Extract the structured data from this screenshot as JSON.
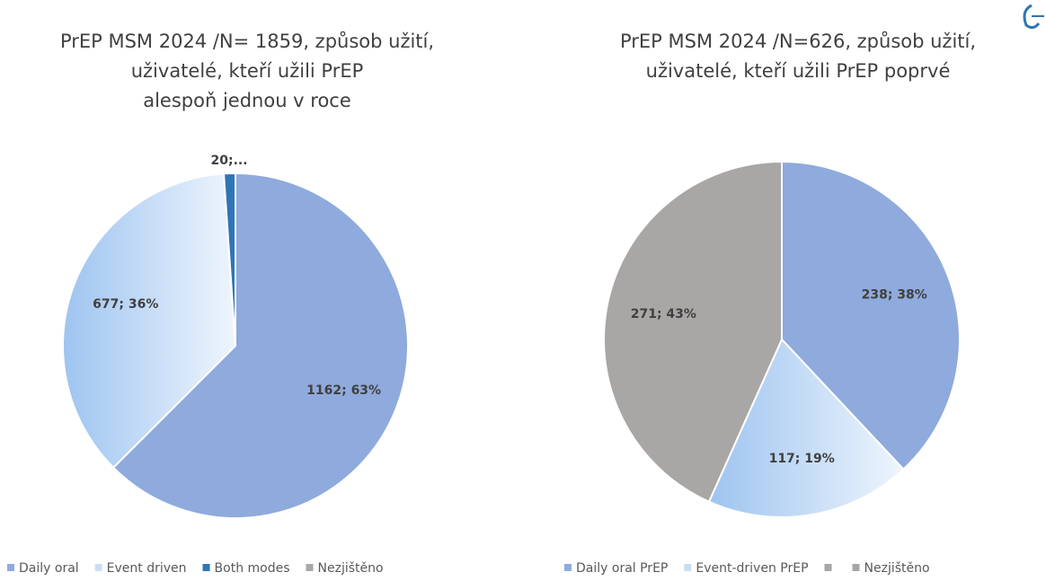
{
  "chart_data": [
    {
      "type": "pie",
      "title": [
        "PrEP MSM 2024 /N= 1859, způsob užití,",
        "uživatelé, kteří užili PrEP",
        "alespoň jednou v roce"
      ],
      "categories": [
        "Daily oral",
        "Event driven",
        "Both modes",
        "Nezjištěno"
      ],
      "values": [
        1162,
        677,
        20,
        0
      ],
      "value_labels": [
        "1162; 63%",
        "677; 36%",
        "20;...",
        null
      ],
      "colors": [
        "#8faadc",
        "#c9def5",
        "#2e75b6",
        "#a9a6a6"
      ]
    },
    {
      "type": "pie",
      "title": [
        "PrEP MSM 2024 /N=626, způsob užití,",
        "uživatelé, kteří užili PrEP poprvé"
      ],
      "categories": [
        "Daily oral PrEP",
        "Event-driven PrEP",
        null,
        "Nezjištěno"
      ],
      "values": [
        238,
        117,
        0,
        271
      ],
      "value_labels": [
        "238; 38%",
        "117; 19%",
        null,
        "271; 43%"
      ],
      "colors": [
        "#8faadc",
        "#c9def5",
        "#a9a6a6",
        "#a9a6a6"
      ]
    }
  ]
}
